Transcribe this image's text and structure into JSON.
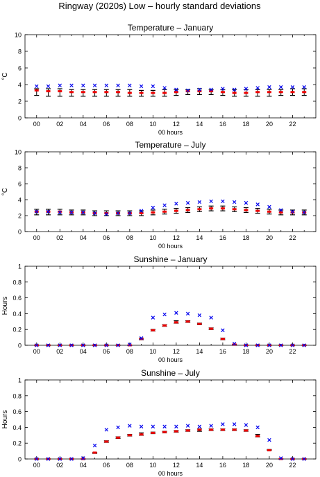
{
  "figure": {
    "title": "Ringway (2020s) Low – hourly standard deviations"
  },
  "colors": {
    "cross": "#0000ee",
    "red_marker": "#ee0000",
    "error_bar": "#000000",
    "axis": "#000000"
  },
  "chart_data": [
    {
      "type": "scatter",
      "title": "Temperature – January",
      "xlabel": "00 hours",
      "ylabel": "°C",
      "xlim": [
        -1,
        24
      ],
      "ylim": [
        0,
        10
      ],
      "xticks": [
        "00",
        "02",
        "04",
        "06",
        "08",
        "10",
        "12",
        "14",
        "16",
        "18",
        "20",
        "22"
      ],
      "yticks": [
        "0",
        "2",
        "4",
        "6",
        "8",
        "10"
      ],
      "hours": [
        0,
        1,
        2,
        3,
        4,
        5,
        6,
        7,
        8,
        9,
        10,
        11,
        12,
        13,
        14,
        15,
        16,
        17,
        18,
        19,
        20,
        21,
        22,
        23
      ],
      "series": [
        {
          "marker": "cross",
          "values": [
            3.8,
            3.8,
            3.9,
            3.9,
            3.9,
            3.9,
            3.9,
            3.9,
            3.9,
            3.8,
            3.8,
            3.6,
            3.4,
            3.3,
            3.4,
            3.4,
            3.5,
            3.4,
            3.5,
            3.6,
            3.7,
            3.7,
            3.7,
            3.7
          ]
        },
        {
          "marker": "square",
          "values": [
            3.3,
            3.2,
            3.2,
            3.1,
            3.1,
            3.1,
            3.1,
            3.1,
            3.0,
            3.0,
            3.0,
            3.0,
            3.1,
            3.2,
            3.2,
            3.2,
            3.1,
            3.0,
            3.0,
            3.1,
            3.1,
            3.1,
            3.1,
            3.1
          ]
        },
        {
          "marker": "errorbar",
          "low": [
            2.7,
            2.6,
            2.6,
            2.6,
            2.6,
            2.6,
            2.6,
            2.6,
            2.6,
            2.6,
            2.6,
            2.6,
            2.7,
            2.8,
            2.8,
            2.8,
            2.7,
            2.6,
            2.6,
            2.6,
            2.6,
            2.7,
            2.7,
            2.7
          ],
          "high": [
            3.5,
            3.5,
            3.5,
            3.4,
            3.4,
            3.4,
            3.4,
            3.4,
            3.4,
            3.3,
            3.3,
            3.4,
            3.4,
            3.4,
            3.5,
            3.4,
            3.4,
            3.4,
            3.4,
            3.4,
            3.4,
            3.4,
            3.5,
            3.5
          ]
        }
      ]
    },
    {
      "type": "scatter",
      "title": "Temperature – July",
      "xlabel": "00 hours",
      "ylabel": "°C",
      "xlim": [
        -1,
        24
      ],
      "ylim": [
        0,
        10
      ],
      "xticks": [
        "00",
        "02",
        "04",
        "06",
        "08",
        "10",
        "12",
        "14",
        "16",
        "18",
        "20",
        "22"
      ],
      "yticks": [
        "0",
        "2",
        "4",
        "6",
        "8",
        "10"
      ],
      "hours": [
        0,
        1,
        2,
        3,
        4,
        5,
        6,
        7,
        8,
        9,
        10,
        11,
        12,
        13,
        14,
        15,
        16,
        17,
        18,
        19,
        20,
        21,
        22,
        23
      ],
      "series": [
        {
          "marker": "cross",
          "values": [
            2.5,
            2.5,
            2.4,
            2.4,
            2.4,
            2.3,
            2.2,
            2.3,
            2.3,
            2.6,
            3.0,
            3.3,
            3.5,
            3.6,
            3.7,
            3.8,
            3.8,
            3.7,
            3.6,
            3.4,
            3.1,
            2.7,
            2.5,
            2.4
          ]
        },
        {
          "marker": "square",
          "values": [
            2.5,
            2.5,
            2.5,
            2.4,
            2.4,
            2.3,
            2.3,
            2.3,
            2.3,
            2.3,
            2.4,
            2.5,
            2.6,
            2.7,
            2.8,
            2.9,
            2.9,
            2.8,
            2.7,
            2.6,
            2.5,
            2.4,
            2.4,
            2.4
          ]
        },
        {
          "marker": "errorbar",
          "low": [
            2.1,
            2.1,
            2.1,
            2.1,
            2.1,
            2.0,
            2.0,
            2.0,
            2.0,
            2.0,
            2.1,
            2.2,
            2.3,
            2.4,
            2.5,
            2.6,
            2.6,
            2.5,
            2.4,
            2.3,
            2.2,
            2.1,
            2.1,
            2.1
          ],
          "high": [
            2.8,
            2.8,
            2.8,
            2.7,
            2.7,
            2.6,
            2.6,
            2.6,
            2.6,
            2.6,
            2.7,
            2.8,
            2.9,
            3.0,
            3.1,
            3.2,
            3.2,
            3.1,
            3.0,
            2.9,
            2.8,
            2.7,
            2.7,
            2.7
          ]
        }
      ]
    },
    {
      "type": "scatter",
      "title": "Sunshine – January",
      "xlabel": "00 hours",
      "ylabel": "Hours",
      "xlim": [
        -1,
        24
      ],
      "ylim": [
        0,
        1
      ],
      "xticks": [
        "00",
        "02",
        "04",
        "06",
        "08",
        "10",
        "12",
        "14",
        "16",
        "18",
        "20",
        "22"
      ],
      "yticks": [
        "0",
        "0.2",
        "0.4",
        "0.6",
        "0.8",
        "1"
      ],
      "hours": [
        0,
        1,
        2,
        3,
        4,
        5,
        6,
        7,
        8,
        9,
        10,
        11,
        12,
        13,
        14,
        15,
        16,
        17,
        18,
        19,
        20,
        21,
        22,
        23
      ],
      "series": [
        {
          "marker": "cross",
          "values": [
            0,
            0,
            0,
            0,
            0,
            0,
            0,
            0,
            0.01,
            0.09,
            0.35,
            0.39,
            0.41,
            0.4,
            0.38,
            0.35,
            0.19,
            0.02,
            0,
            0,
            0,
            0,
            0,
            0
          ]
        },
        {
          "marker": "square",
          "values": [
            0,
            0,
            0,
            0,
            0,
            0,
            0,
            0,
            0,
            0.08,
            0.19,
            0.25,
            0.29,
            0.3,
            0.27,
            0.21,
            0.08,
            0.01,
            0,
            0,
            0,
            0,
            0,
            0
          ]
        },
        {
          "marker": "errorbar",
          "low": [
            0,
            0,
            0,
            0,
            0,
            0,
            0,
            0,
            0,
            0.07,
            0.18,
            0.24,
            0.28,
            0.29,
            0.26,
            0.2,
            0.07,
            0,
            0,
            0,
            0,
            0,
            0,
            0
          ],
          "high": [
            0,
            0,
            0,
            0,
            0,
            0,
            0,
            0,
            0,
            0.09,
            0.2,
            0.26,
            0.31,
            0.31,
            0.28,
            0.22,
            0.09,
            0.01,
            0,
            0,
            0,
            0,
            0,
            0
          ]
        }
      ]
    },
    {
      "type": "scatter",
      "title": "Sunshine – July",
      "xlabel": "00 hours",
      "ylabel": "Hours",
      "xlim": [
        -1,
        24
      ],
      "ylim": [
        0,
        1
      ],
      "xticks": [
        "00",
        "02",
        "04",
        "06",
        "08",
        "10",
        "12",
        "14",
        "16",
        "18",
        "20",
        "22"
      ],
      "yticks": [
        "0",
        "0.2",
        "0.4",
        "0.6",
        "0.8",
        "1"
      ],
      "hours": [
        0,
        1,
        2,
        3,
        4,
        5,
        6,
        7,
        8,
        9,
        10,
        11,
        12,
        13,
        14,
        15,
        16,
        17,
        18,
        19,
        20,
        21,
        22,
        23
      ],
      "series": [
        {
          "marker": "cross",
          "values": [
            0,
            0,
            0,
            0,
            0.01,
            0.17,
            0.37,
            0.4,
            0.42,
            0.41,
            0.41,
            0.41,
            0.41,
            0.42,
            0.41,
            0.42,
            0.44,
            0.44,
            0.43,
            0.4,
            0.24,
            0.01,
            0,
            0
          ]
        },
        {
          "marker": "square",
          "values": [
            0,
            0,
            0,
            0,
            0,
            0.08,
            0.22,
            0.27,
            0.3,
            0.31,
            0.33,
            0.34,
            0.35,
            0.36,
            0.37,
            0.37,
            0.37,
            0.37,
            0.36,
            0.29,
            0.11,
            0,
            0,
            0
          ]
        },
        {
          "marker": "errorbar",
          "low": [
            0,
            0,
            0,
            0,
            0,
            0.07,
            0.21,
            0.26,
            0.29,
            0.3,
            0.32,
            0.33,
            0.34,
            0.35,
            0.35,
            0.36,
            0.36,
            0.36,
            0.35,
            0.28,
            0.11,
            0,
            0,
            0
          ],
          "high": [
            0,
            0,
            0,
            0,
            0,
            0.08,
            0.23,
            0.28,
            0.31,
            0.33,
            0.34,
            0.35,
            0.36,
            0.37,
            0.38,
            0.38,
            0.38,
            0.38,
            0.37,
            0.31,
            0.12,
            0,
            0,
            0
          ]
        }
      ]
    }
  ]
}
